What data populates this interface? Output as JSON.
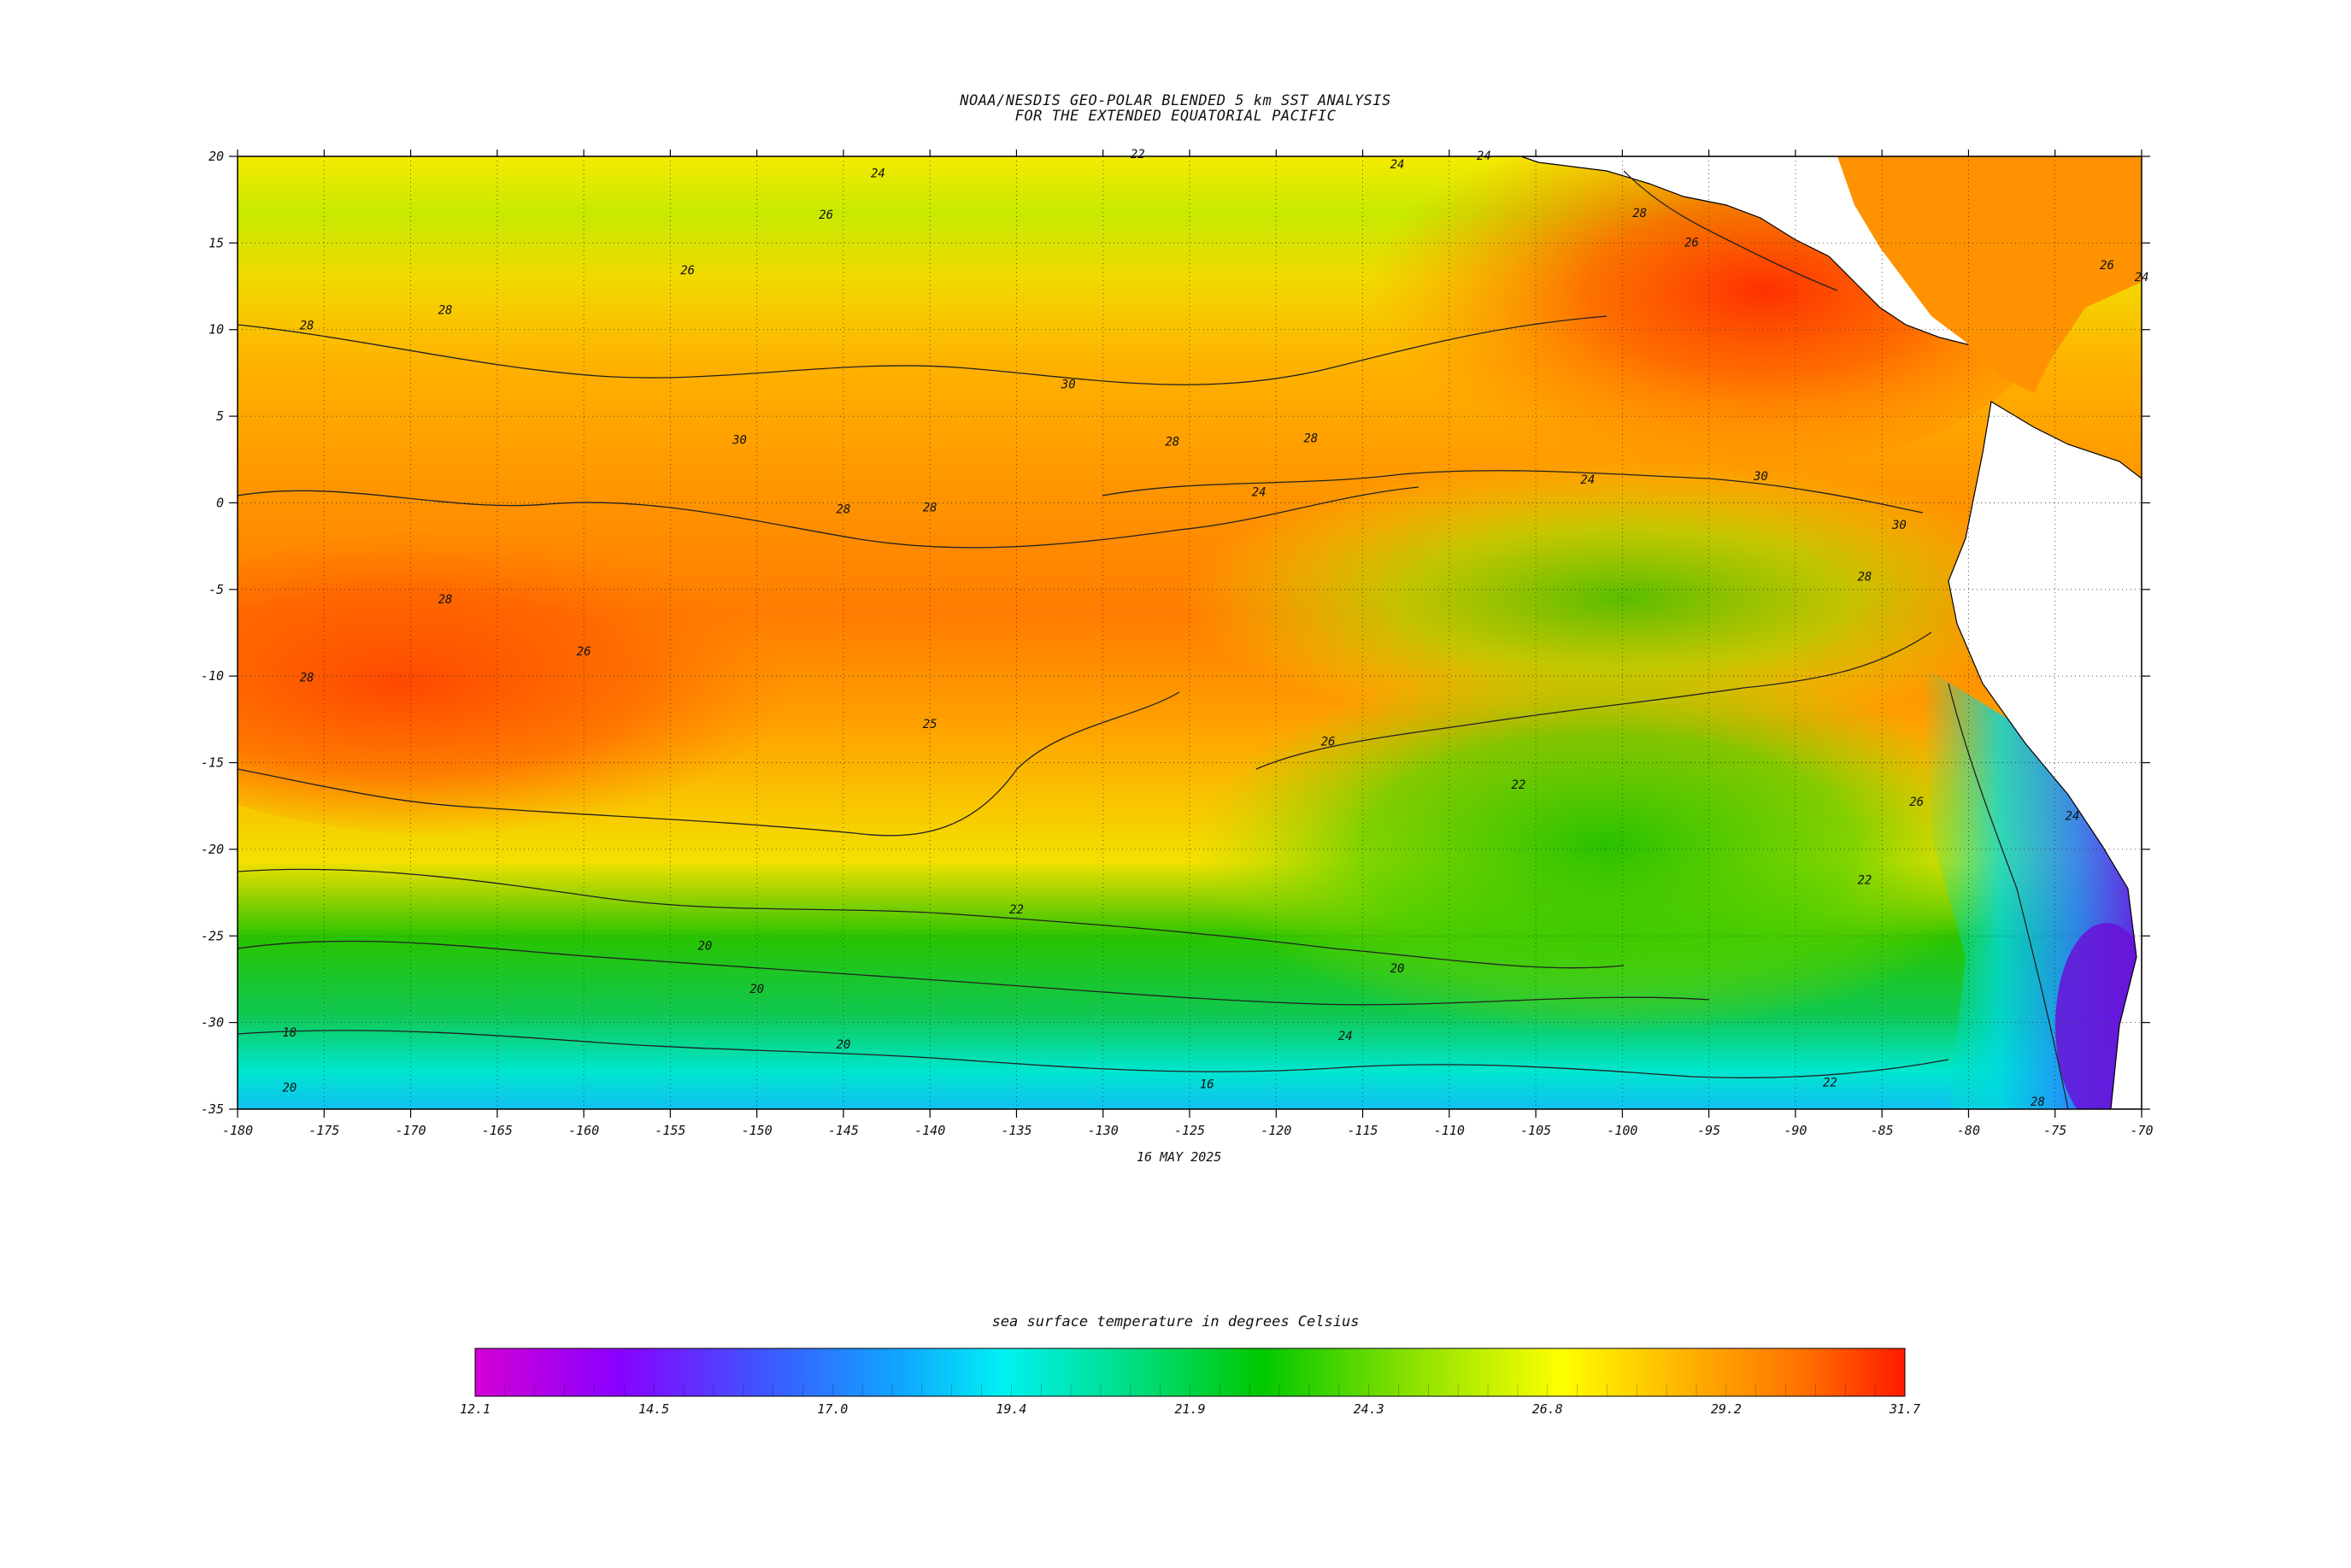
{
  "title": {
    "line1": "NOAA/NESDIS GEO-POLAR BLENDED 5 km SST ANALYSIS",
    "line2": "FOR THE EXTENDED EQUATORIAL PACIFIC"
  },
  "date": "16 MAY 2025",
  "map": {
    "lon_range": [
      -180,
      -70
    ],
    "lat_range": [
      -35,
      20
    ],
    "x_ticks": [
      -180,
      -175,
      -170,
      -165,
      -160,
      -155,
      -150,
      -145,
      -140,
      -135,
      -130,
      -125,
      -120,
      -115,
      -110,
      -105,
      -100,
      -95,
      -90,
      -85,
      -80,
      -75,
      -70
    ],
    "y_ticks": [
      20,
      15,
      10,
      5,
      0,
      -5,
      -10,
      -15,
      -20,
      -25,
      -30,
      -35
    ],
    "grid": "dotted",
    "contour_labels": [
      "24",
      "22",
      "24",
      "24",
      "26",
      "26",
      "28",
      "28",
      "30",
      "30",
      "28",
      "28",
      "28",
      "28",
      "28",
      "28",
      "26",
      "25",
      "24",
      "26",
      "30",
      "30",
      "28",
      "28",
      "26",
      "26",
      "24",
      "24",
      "22",
      "22",
      "20",
      "20",
      "20",
      "18",
      "20",
      "16",
      "20",
      "24",
      "22",
      "26",
      "24",
      "22",
      "28"
    ],
    "colors": {
      "land": "#ffffff",
      "coastline": "#000000"
    }
  },
  "colorbar": {
    "title": "sea surface temperature in degrees Celsius",
    "tick_labels": [
      "12.1",
      "14.5",
      "17.0",
      "19.4",
      "21.9",
      "24.3",
      "26.8",
      "29.2",
      "31.7"
    ],
    "range": [
      12.1,
      31.7
    ],
    "colors": [
      "#d300d3",
      "#8a00ff",
      "#3f55ff",
      "#0fa8ff",
      "#00f2f2",
      "#00df90",
      "#00c800",
      "#85e000",
      "#ffff00",
      "#ffb000",
      "#ff7000",
      "#ff1a00"
    ]
  }
}
